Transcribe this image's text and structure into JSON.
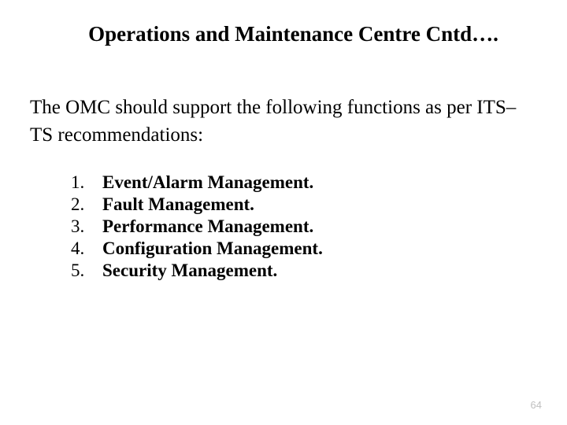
{
  "slide": {
    "title": "Operations and Maintenance Centre Cntd….",
    "intro": "The OMC should support the following functions as per ITS–TS recommendations:",
    "items": [
      {
        "number": "1.",
        "text": "Event/Alarm Management."
      },
      {
        "number": "2.",
        "text": "Fault Management."
      },
      {
        "number": "3.",
        "text": "Performance Management."
      },
      {
        "number": "4.",
        "text": "Configuration Management."
      },
      {
        "number": "5.",
        "text": "Security Management."
      }
    ],
    "page_number": "64"
  },
  "styles": {
    "background_color": "#ffffff",
    "text_color": "#000000",
    "page_number_color": "#bfbfbf",
    "title_fontsize": 27,
    "body_fontsize": 25,
    "list_fontsize": 23,
    "page_number_fontsize": 13,
    "font_family": "Times New Roman"
  }
}
